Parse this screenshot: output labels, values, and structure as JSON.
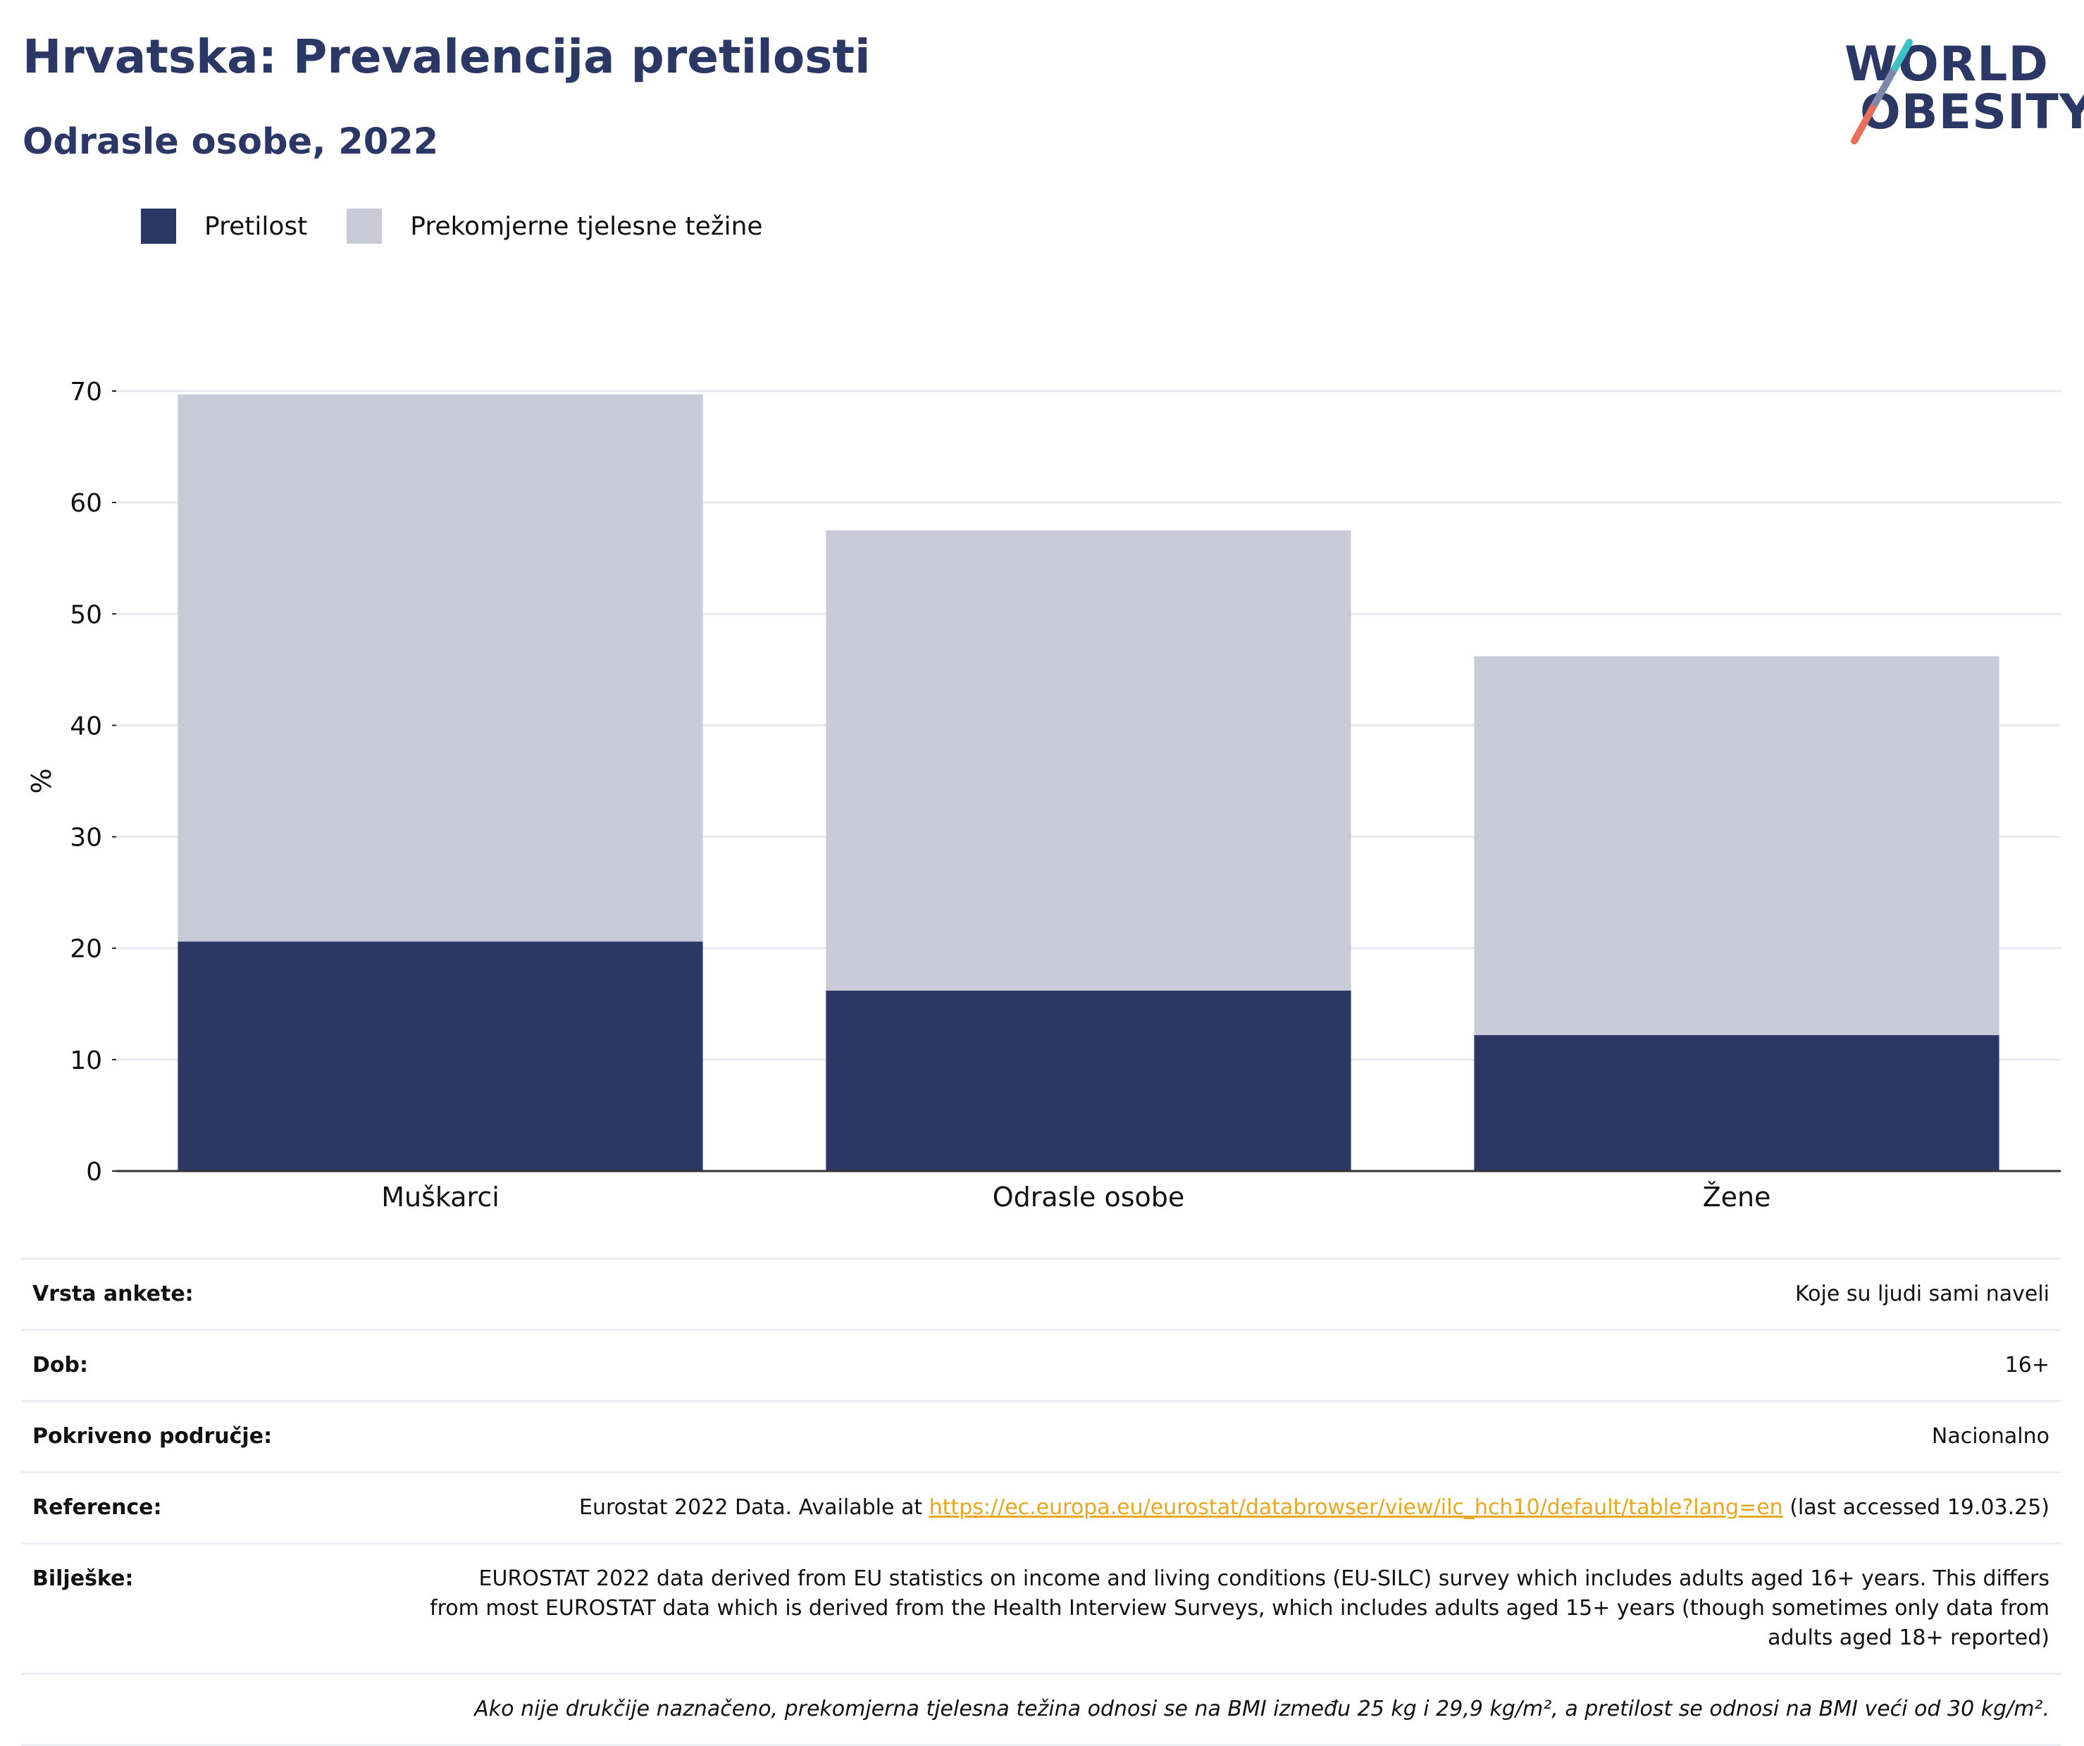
{
  "header": {
    "title": "Hrvatska: Prevalencija pretilosti",
    "subtitle": "Odrasle osobe, 2022"
  },
  "logo": {
    "line1": "WORLD",
    "line2": "OBESITY"
  },
  "colors": {
    "obesity": "#2b3764",
    "overweight": "#c9cbd8",
    "text": "#2b3764",
    "link": "#e8a71e"
  },
  "legend": [
    {
      "label": "Pretilost",
      "color": "#2b3764"
    },
    {
      "label": "Prekomjerne tjelesne težine",
      "color": "#c9cbd8"
    }
  ],
  "chart_data": {
    "type": "bar",
    "stacked": true,
    "categories": [
      "Muškarci",
      "Odrasle osobe",
      "Žene"
    ],
    "series": [
      {
        "name": "Pretilost",
        "values": [
          20.6,
          16.2,
          12.2
        ]
      },
      {
        "name": "Prekomjerne tjelesne težine",
        "values": [
          49.1,
          41.3,
          34.0
        ]
      }
    ],
    "ylabel": "%",
    "ylim": [
      0,
      70
    ],
    "yticks": [
      0,
      10,
      20,
      30,
      40,
      50,
      60,
      70
    ],
    "grid": true,
    "legend_position": "top-left"
  },
  "info": {
    "rows": [
      {
        "label": "Vrsta ankete:",
        "value": "Koje su ljudi sami naveli"
      },
      {
        "label": "Dob:",
        "value": "16+"
      },
      {
        "label": "Pokriveno područje:",
        "value": "Nacionalno"
      },
      {
        "label": "Reference:",
        "value_pre": "Eurostat 2022 Data. Available at ",
        "link": "https://ec.europa.eu/eurostat/databrowser/view/ilc_hch10/default/table?lang=en",
        "value_post": " (last accessed 19.03.25)"
      },
      {
        "label": "Bilješke:",
        "value": "EUROSTAT 2022 data derived from EU statistics on income and living conditions (EU-SILC) survey which includes adults aged 16+ years. This differs from most EUROSTAT data which is derived from the Health Interview Surveys, which includes adults aged 15+ years (though sometimes only data from adults aged 18+ reported)"
      }
    ],
    "footnote": "Ako nije drukčije naznačeno, prekomjerna tjelesna težina odnosi se na BMI između 25 kg i 29,9 kg/m², a pretilost se odnosi na BMI veći od 30 kg/m²."
  }
}
